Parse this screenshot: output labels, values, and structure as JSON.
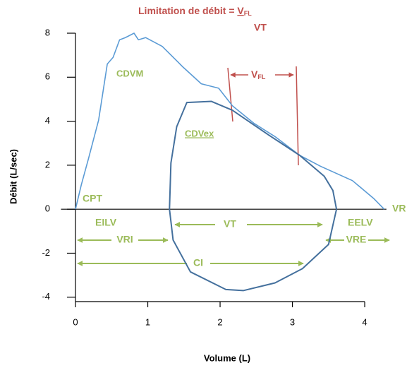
{
  "chart_data": {
    "type": "line",
    "title": {
      "text": "Limitation de débit = ",
      "num": "V",
      "num_sub": "FL",
      "den": "VT"
    },
    "xlabel": "Volume (L)",
    "ylabel": "Débit (L/sec)",
    "xlim": [
      -0.2,
      4.3
    ],
    "xticks": [
      0,
      1,
      2,
      3,
      4
    ],
    "ylim": [
      -4.2,
      8
    ],
    "yticks": [
      -4,
      -2,
      0,
      2,
      4,
      6,
      8
    ],
    "series": [
      {
        "name": "CDVM",
        "color": "#5b9bd5",
        "x": [
          0,
          0.08,
          0.18,
          0.32,
          0.44,
          0.52,
          0.61,
          0.69,
          0.81,
          0.87,
          0.97,
          1.2,
          1.49,
          1.74,
          1.98,
          2.17,
          2.47,
          2.76,
          3.1,
          3.39,
          3.83,
          4.12,
          4.27
        ],
        "values": [
          0,
          1.1,
          2.3,
          4.05,
          6.6,
          6.9,
          7.7,
          7.8,
          8.0,
          7.7,
          7.8,
          7.4,
          6.45,
          5.7,
          5.5,
          4.7,
          3.9,
          3.3,
          2.45,
          1.95,
          1.3,
          0.5,
          0
        ]
      },
      {
        "name": "CDVex",
        "color": "#44709d",
        "x": [
          3.61,
          3.5,
          3.14,
          2.76,
          2.32,
          2.08,
          1.59,
          1.35,
          1.3,
          1.32,
          1.4,
          1.54,
          1.88,
          2.17,
          2.66,
          3.1,
          3.44,
          3.56,
          3.61
        ],
        "values": [
          0,
          -1.6,
          -2.7,
          -3.35,
          -3.7,
          -3.65,
          -2.85,
          -1.4,
          0,
          2.1,
          3.75,
          4.85,
          4.9,
          4.5,
          3.4,
          2.45,
          1.5,
          0.85,
          0
        ]
      }
    ],
    "annotations": {
      "vfl": "V",
      "vfl_sub": "FL",
      "cpt": "CPT",
      "vr": "VR",
      "eilv": "EILV",
      "eelv": "EELV",
      "vri": "VRI",
      "vt": "VT",
      "ci": "CI",
      "vre": "VRE"
    }
  }
}
